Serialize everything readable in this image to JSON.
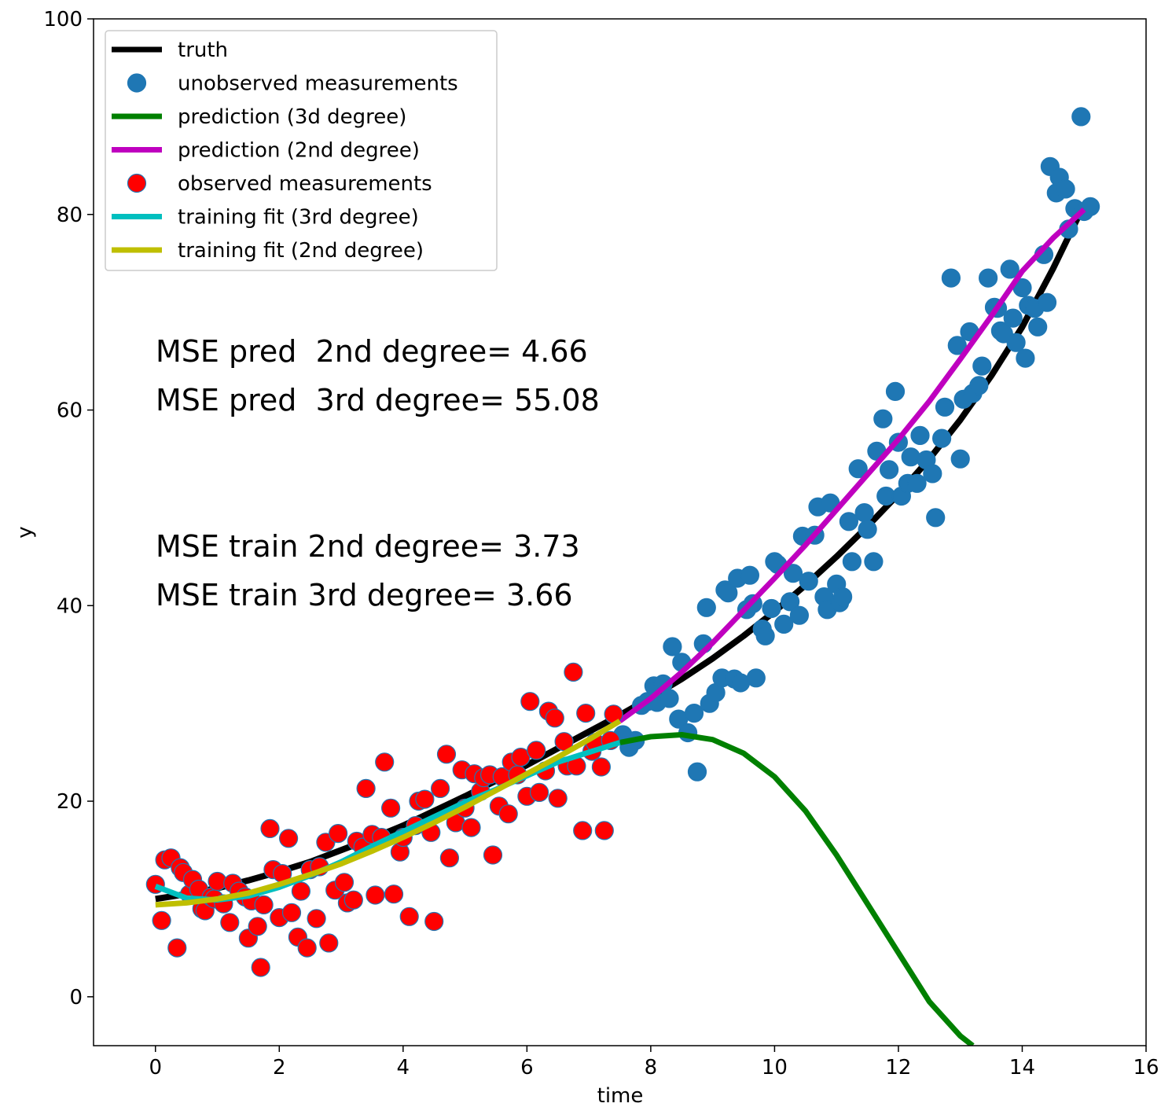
{
  "chart_data": {
    "type": "scatter",
    "xlabel": "time",
    "ylabel": "y",
    "xlim": [
      -1,
      16
    ],
    "ylim": [
      -5,
      100
    ],
    "xticks": [
      0,
      2,
      4,
      6,
      8,
      10,
      12,
      14,
      16
    ],
    "yticks": [
      0,
      20,
      40,
      60,
      80,
      100
    ],
    "grid": false,
    "legend_position": "top-left",
    "legend": [
      {
        "label": "truth",
        "color": "#000000",
        "marker": "line"
      },
      {
        "label": "unobserved measurements",
        "color": "#1f77b4",
        "marker": "circle"
      },
      {
        "label": "prediction (3d degree)",
        "color": "#008000",
        "marker": "line"
      },
      {
        "label": "prediction (2nd degree)",
        "color": "#bf00bf",
        "marker": "line"
      },
      {
        "label": "observed measurements",
        "color": "#ff0000",
        "marker": "circle"
      },
      {
        "label": "training fit (3rd degree)",
        "color": "#00bfbf",
        "marker": "line"
      },
      {
        "label": "training fit (2nd degree)",
        "color": "#bfbf00",
        "marker": "line"
      }
    ],
    "annotations": [
      "MSE pred  2nd degree= 4.66",
      "MSE pred  3rd degree= 55.08",
      "MSE train 2nd degree= 3.73",
      "MSE train 3rd degree= 3.66"
    ],
    "series": [
      {
        "name": "truth",
        "kind": "line",
        "color": "#000000",
        "x": [
          0,
          0.5,
          1,
          1.5,
          2,
          2.5,
          3,
          3.5,
          4,
          4.5,
          5,
          5.5,
          6,
          6.5,
          7,
          7.5,
          8,
          8.5,
          9,
          9.5,
          10,
          10.5,
          11,
          11.5,
          12,
          12.5,
          13,
          13.5,
          14,
          14.5,
          15
        ],
        "y": [
          10.0,
          10.5,
          11.1,
          11.9,
          12.8,
          13.8,
          15.0,
          16.2,
          17.5,
          19.0,
          20.5,
          22.1,
          23.7,
          25.4,
          27.1,
          28.8,
          30.6,
          32.5,
          34.6,
          36.9,
          39.4,
          42.1,
          45.0,
          48.1,
          51.4,
          55.0,
          59.0,
          63.5,
          68.5,
          74.5,
          81.0
        ]
      },
      {
        "name": "unobserved measurements",
        "kind": "scatter",
        "color": "#1f77b4",
        "x": [
          7.55,
          7.65,
          7.75,
          7.85,
          7.95,
          8.05,
          8.1,
          8.2,
          8.3,
          8.35,
          8.45,
          8.5,
          8.6,
          8.7,
          8.75,
          8.85,
          8.9,
          8.95,
          9.05,
          9.15,
          9.2,
          9.25,
          9.35,
          9.4,
          9.45,
          9.55,
          9.6,
          9.65,
          9.7,
          9.8,
          9.85,
          9.95,
          10.0,
          10.05,
          10.15,
          10.25,
          10.3,
          10.4,
          10.45,
          10.55,
          10.65,
          10.7,
          10.8,
          10.85,
          10.9,
          11.0,
          11.05,
          11.1,
          11.2,
          11.25,
          11.35,
          11.45,
          11.5,
          11.6,
          11.65,
          11.75,
          11.8,
          11.85,
          11.95,
          12.0,
          12.05,
          12.15,
          12.2,
          12.3,
          12.35,
          12.45,
          12.55,
          12.6,
          12.7,
          12.75,
          12.85,
          12.95,
          13.0,
          13.05,
          13.15,
          13.2,
          13.3,
          13.35,
          13.45,
          13.55,
          13.6,
          13.65,
          13.7,
          13.8,
          13.85,
          13.9,
          14.0,
          14.05,
          14.1,
          14.2,
          14.25,
          14.35,
          14.4,
          14.45,
          14.55,
          14.6,
          14.7,
          14.75,
          14.85,
          14.95,
          15.0,
          15.1
        ],
        "y": [
          26.8,
          25.5,
          26.2,
          29.8,
          30.2,
          31.8,
          30.1,
          32.0,
          30.5,
          35.8,
          28.4,
          34.2,
          27.0,
          29.0,
          23.0,
          36.1,
          39.8,
          30.0,
          31.1,
          32.6,
          41.6,
          41.3,
          32.5,
          42.8,
          32.1,
          39.6,
          43.1,
          40.2,
          32.6,
          37.6,
          36.9,
          39.7,
          44.5,
          44.2,
          38.1,
          40.4,
          43.3,
          39.0,
          47.1,
          42.5,
          47.2,
          50.1,
          40.9,
          39.6,
          50.5,
          42.2,
          40.3,
          40.9,
          48.6,
          44.5,
          54.0,
          49.5,
          47.8,
          44.5,
          55.8,
          59.1,
          51.2,
          53.9,
          61.9,
          56.7,
          51.2,
          52.5,
          55.2,
          52.5,
          57.4,
          54.9,
          53.5,
          49.0,
          57.1,
          60.3,
          73.5,
          66.6,
          55.0,
          61.1,
          68.0,
          61.7,
          62.5,
          64.5,
          73.5,
          70.5,
          70.4,
          68.1,
          67.8,
          74.4,
          69.4,
          66.9,
          72.5,
          65.3,
          70.7,
          70.4,
          68.5,
          75.9,
          71.0,
          84.9,
          82.2,
          83.8,
          82.6,
          78.5,
          80.6,
          90.0,
          80.3,
          80.8
        ]
      },
      {
        "name": "prediction (3d degree)",
        "kind": "line",
        "color": "#008000",
        "x": [
          7.5,
          8,
          8.5,
          9,
          9.5,
          10,
          10.5,
          11,
          11.5,
          12,
          12.5,
          13,
          13.2
        ],
        "y": [
          26.0,
          26.6,
          26.8,
          26.3,
          24.9,
          22.5,
          19.0,
          14.5,
          9.5,
          4.5,
          -0.5,
          -4.0,
          -5.0
        ]
      },
      {
        "name": "prediction (2nd degree)",
        "kind": "line",
        "color": "#bf00bf",
        "x": [
          7.5,
          8,
          8.5,
          9,
          9.5,
          10,
          10.5,
          11,
          11.5,
          12,
          12.5,
          13,
          13.5,
          14,
          14.5,
          15
        ],
        "y": [
          28.2,
          30.5,
          33.2,
          36.2,
          39.5,
          42.8,
          46.2,
          49.8,
          53.4,
          57.0,
          60.9,
          65.2,
          69.6,
          74.2,
          77.6,
          80.5
        ]
      },
      {
        "name": "observed measurements",
        "kind": "scatter",
        "color": "#ff0000",
        "x": [
          0.0,
          0.1,
          0.15,
          0.25,
          0.35,
          0.4,
          0.45,
          0.55,
          0.6,
          0.7,
          0.75,
          0.8,
          0.9,
          0.95,
          1.0,
          1.1,
          1.2,
          1.25,
          1.35,
          1.45,
          1.5,
          1.55,
          1.65,
          1.7,
          1.75,
          1.85,
          1.9,
          2.0,
          2.05,
          2.15,
          2.2,
          2.3,
          2.35,
          2.45,
          2.5,
          2.6,
          2.65,
          2.75,
          2.8,
          2.9,
          2.95,
          3.05,
          3.1,
          3.2,
          3.25,
          3.35,
          3.4,
          3.5,
          3.55,
          3.65,
          3.7,
          3.8,
          3.85,
          3.95,
          4.0,
          4.1,
          4.2,
          4.25,
          4.35,
          4.45,
          4.5,
          4.6,
          4.7,
          4.75,
          4.85,
          4.95,
          5.0,
          5.1,
          5.15,
          5.25,
          5.3,
          5.4,
          5.45,
          5.55,
          5.6,
          5.7,
          5.75,
          5.85,
          5.9,
          6.0,
          6.05,
          6.15,
          6.2,
          6.3,
          6.35,
          6.45,
          6.5,
          6.6,
          6.65,
          6.75,
          6.8,
          6.9,
          6.95,
          7.05,
          7.1,
          7.2,
          7.25,
          7.35,
          7.4
        ],
        "y": [
          11.5,
          7.8,
          14.0,
          14.2,
          5.0,
          13.2,
          12.7,
          10.5,
          12.0,
          11.0,
          9.0,
          8.8,
          10.2,
          10.0,
          11.8,
          9.5,
          7.6,
          11.6,
          10.8,
          10.2,
          6.0,
          9.8,
          7.2,
          3.0,
          9.4,
          17.2,
          13.0,
          8.1,
          12.6,
          16.2,
          8.6,
          6.1,
          10.8,
          5.0,
          13.0,
          8.0,
          13.3,
          15.8,
          5.5,
          10.9,
          16.7,
          11.7,
          9.6,
          9.9,
          15.9,
          15.3,
          21.3,
          16.6,
          10.4,
          16.3,
          24.0,
          19.3,
          10.5,
          14.8,
          16.3,
          8.2,
          17.5,
          20.0,
          20.2,
          16.8,
          7.7,
          21.3,
          24.8,
          14.2,
          17.8,
          23.2,
          19.3,
          17.3,
          22.8,
          21.0,
          22.4,
          22.7,
          14.5,
          19.5,
          22.5,
          18.7,
          24.0,
          22.7,
          24.5,
          20.5,
          30.2,
          25.2,
          20.9,
          23.1,
          29.2,
          28.5,
          20.3,
          26.1,
          23.6,
          33.2,
          23.6,
          17.0,
          29.0,
          25.1,
          26.0,
          23.5,
          17.0,
          26.2,
          28.9
        ]
      },
      {
        "name": "training fit (3rd degree)",
        "kind": "line",
        "color": "#00bfbf",
        "x": [
          0,
          0.5,
          1,
          1.5,
          2,
          2.5,
          3,
          3.5,
          4,
          4.5,
          5,
          5.5,
          6,
          6.5,
          7,
          7.5
        ],
        "y": [
          11.3,
          10.1,
          9.9,
          10.3,
          11.2,
          12.4,
          13.8,
          15.4,
          16.9,
          18.4,
          19.9,
          21.2,
          22.6,
          24.0,
          25.0,
          26.0
        ]
      },
      {
        "name": "training fit (2nd degree)",
        "kind": "line",
        "color": "#bfbf00",
        "x": [
          0,
          0.5,
          1,
          1.5,
          2,
          2.5,
          3,
          3.5,
          4,
          4.5,
          5,
          5.5,
          6,
          6.5,
          7,
          7.5
        ],
        "y": [
          9.4,
          9.6,
          10.0,
          10.6,
          11.5,
          12.5,
          13.6,
          14.9,
          16.3,
          17.8,
          19.4,
          21.1,
          22.8,
          24.5,
          26.3,
          28.2
        ]
      }
    ]
  }
}
